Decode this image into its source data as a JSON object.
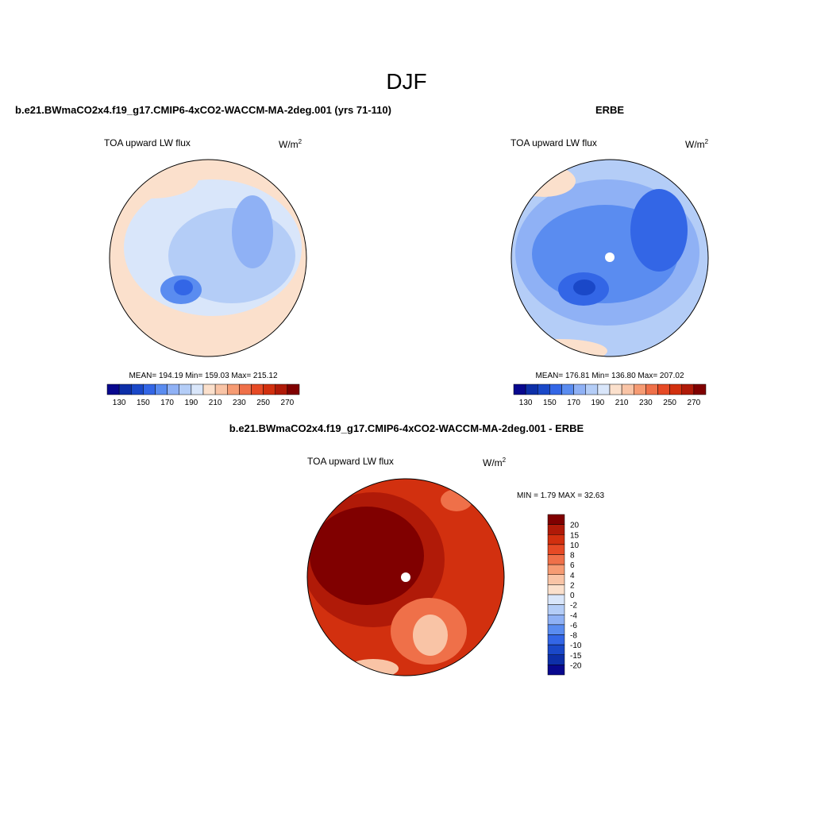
{
  "title": "DJF",
  "panels": [
    {
      "title": "b.e21.BWmaCO2x4.f19_g17.CMIP6-4xCO2-WACCM-MA-2deg.001 (yrs 71-110)",
      "field": "TOA upward LW flux",
      "units": "W/m",
      "units_exp": "2",
      "stats": "MEAN= 194.19  Min= 159.03  Max= 215.12"
    },
    {
      "title": "ERBE",
      "field": "TOA upward LW flux",
      "units": "W/m",
      "units_exp": "2",
      "stats": "MEAN= 176.81  Min= 136.80  Max= 207.02"
    },
    {
      "title": "b.e21.BWmaCO2x4.f19_g17.CMIP6-4xCO2-WACCM-MA-2deg.001 - ERBE",
      "field": "TOA upward LW flux",
      "units": "W/m",
      "units_exp": "2",
      "stats": "MIN =  1.79 MAX =  32.63"
    }
  ],
  "abs_colorbar": {
    "colors": [
      "#08088e",
      "#0d2fa8",
      "#1a48c8",
      "#3366e6",
      "#5a8cf0",
      "#8fb1f5",
      "#b4cdf7",
      "#d9e6fa",
      "#fbe0cc",
      "#f9c4a6",
      "#f69b73",
      "#ef7049",
      "#e64a25",
      "#d2300f",
      "#b01a08",
      "#800000"
    ],
    "labels": [
      "130",
      "150",
      "170",
      "190",
      "210",
      "230",
      "250",
      "270"
    ]
  },
  "diff_colorbar": {
    "colors": [
      "#800000",
      "#b01a08",
      "#d2300f",
      "#e64a25",
      "#ef7049",
      "#f69b73",
      "#f9c4a6",
      "#fbe0cc",
      "#d9e6fa",
      "#b4cdf7",
      "#8fb1f5",
      "#5a8cf0",
      "#3366e6",
      "#1a48c8",
      "#0d2fa8",
      "#08088e"
    ],
    "labels": [
      "20",
      "15",
      "10",
      "8",
      "6",
      "4",
      "2",
      "0",
      "-2",
      "-4",
      "-6",
      "-8",
      "-10",
      "-15",
      "-20"
    ]
  }
}
